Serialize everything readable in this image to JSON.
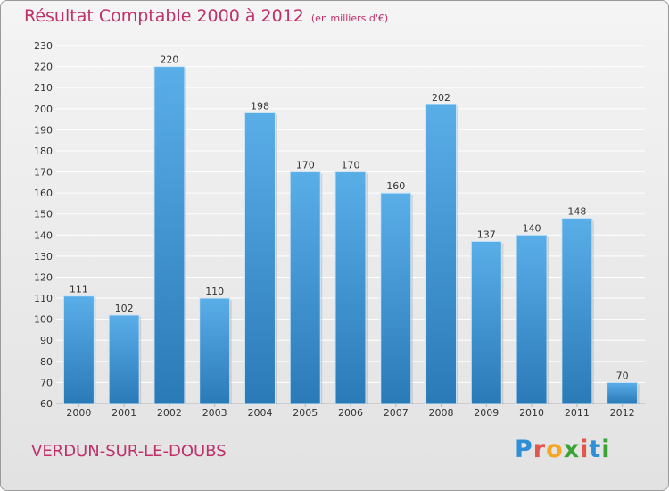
{
  "title": "Résultat Comptable 2000 à 2012",
  "unit_note": "(en milliers d'€)",
  "commune": "VERDUN-SUR-LE-DOUBS",
  "logo": {
    "text": "Proxiti",
    "letter_colors": [
      "#2f8fd6",
      "#e2574c",
      "#f5a623",
      "#3aa335",
      "#e2574c",
      "#2f8fd6",
      "#3aa335"
    ]
  },
  "colors": {
    "title": "#c0306a",
    "bar_light": "#5aaee8",
    "bar_dark": "#2a7ab8",
    "grid": "#ffffff"
  },
  "chart_data": {
    "type": "bar",
    "categories": [
      "2000",
      "2001",
      "2002",
      "2003",
      "2004",
      "2005",
      "2006",
      "2007",
      "2008",
      "2009",
      "2010",
      "2011",
      "2012"
    ],
    "values": [
      111,
      102,
      220,
      110,
      198,
      170,
      170,
      160,
      202,
      137,
      140,
      148,
      70
    ],
    "ylim": [
      60,
      230
    ],
    "yticks": [
      60,
      70,
      80,
      90,
      100,
      110,
      120,
      130,
      140,
      150,
      160,
      170,
      180,
      190,
      200,
      210,
      220,
      230
    ],
    "grid": true,
    "data_labels": true
  }
}
